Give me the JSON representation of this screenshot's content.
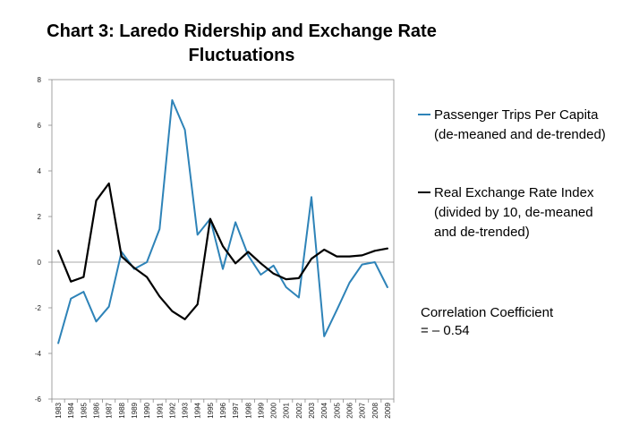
{
  "chart_data": {
    "type": "line",
    "title_line1": "Chart 3: Laredo Ridership and Exchange Rate",
    "title_line2": "Fluctuations",
    "categories": [
      "1983",
      "1984",
      "1985",
      "1986",
      "1987",
      "1988",
      "1989",
      "1990",
      "1991",
      "1992",
      "1993",
      "1994",
      "1995",
      "1996",
      "1997",
      "1998",
      "1999",
      "2000",
      "2001",
      "2002",
      "2003",
      "2004",
      "2005",
      "2006",
      "2007",
      "2008",
      "2009"
    ],
    "series": [
      {
        "name": "Passenger Trips Per Capita (de-meaned and de-trended)",
        "color": "#2e83b8",
        "values": [
          -3.55,
          -1.6,
          -1.3,
          -2.6,
          -1.95,
          0.45,
          -0.3,
          0.0,
          1.45,
          7.1,
          5.8,
          1.2,
          1.9,
          -0.3,
          1.75,
          0.3,
          -0.55,
          -0.15,
          -1.1,
          -1.55,
          2.85,
          -3.25,
          -2.1,
          -0.9,
          -0.1,
          0.0,
          -1.1
        ]
      },
      {
        "name": "Real Exchange Rate Index (divided by 10, de-meaned and de-trended)",
        "color": "#000000",
        "values": [
          0.5,
          -0.85,
          -0.65,
          2.7,
          3.45,
          0.25,
          -0.25,
          -0.65,
          -1.5,
          -2.15,
          -2.5,
          -1.85,
          1.9,
          0.7,
          -0.05,
          0.45,
          -0.05,
          -0.5,
          -0.75,
          -0.7,
          0.15,
          0.55,
          0.25,
          0.25,
          0.3,
          0.5,
          0.6
        ]
      }
    ],
    "ylim": [
      -6,
      8
    ],
    "yticks": [
      -6,
      -4,
      -2,
      0,
      2,
      4,
      6,
      8
    ],
    "xlabel": "",
    "ylabel": "",
    "grid": false,
    "legend_position": "right"
  },
  "annotation": {
    "line1": "Correlation Coefficient",
    "line2": "= – 0.54"
  }
}
